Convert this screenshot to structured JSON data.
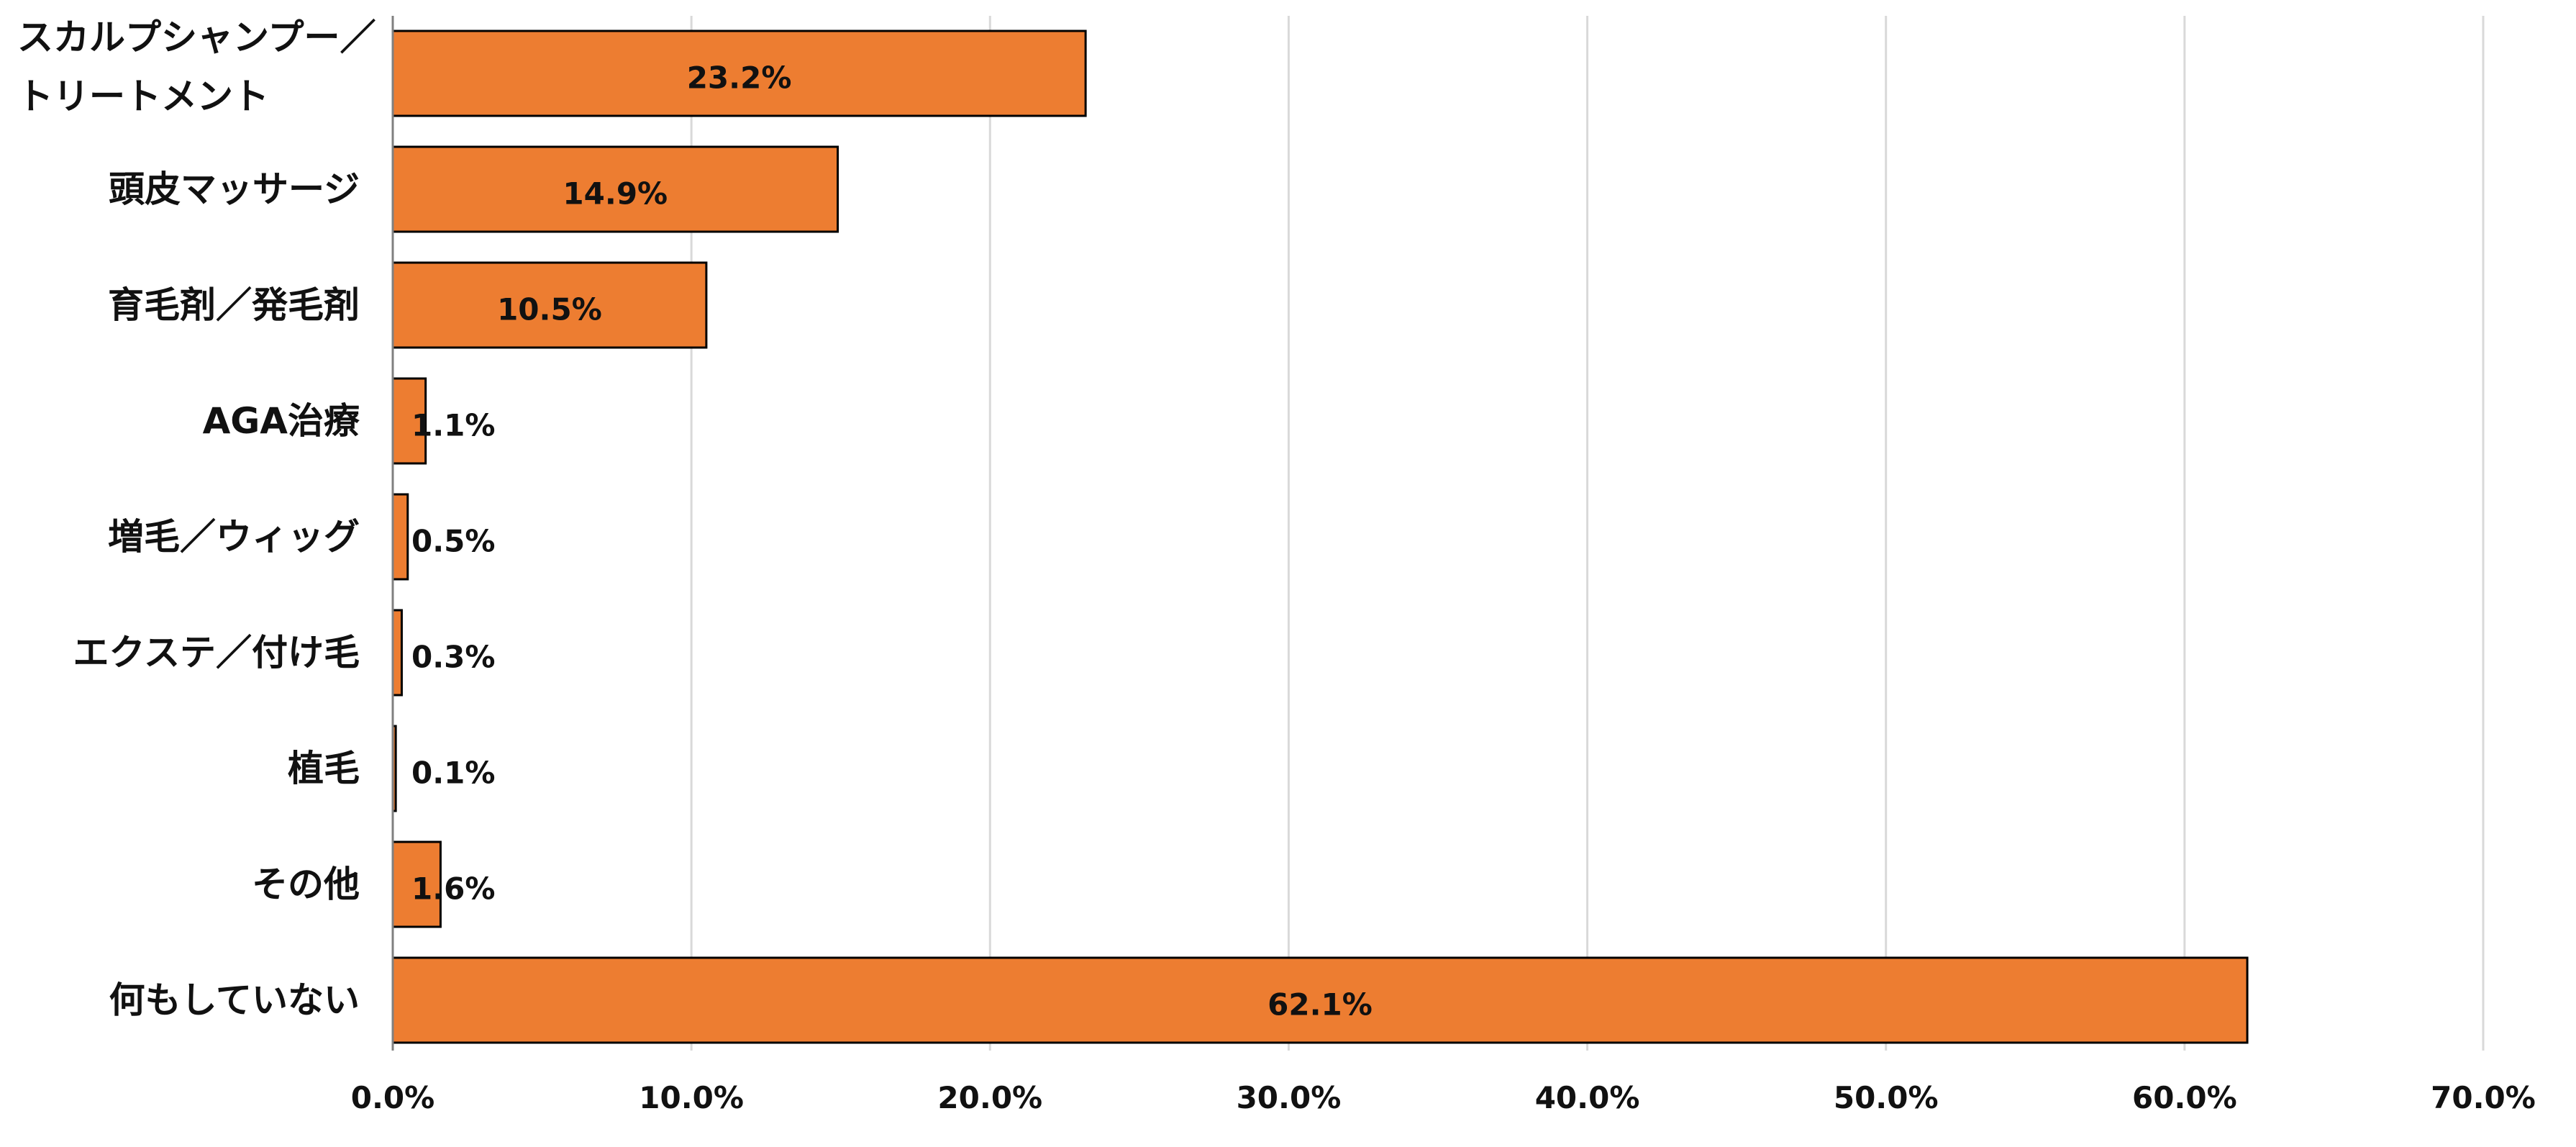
{
  "chart_data": {
    "type": "bar",
    "orientation": "horizontal",
    "categories": [
      [
        "スカルプシャンプー／",
        "トリートメント"
      ],
      [
        "頭皮マッサージ"
      ],
      [
        "育毛剤／発毛剤"
      ],
      [
        "AGA治療"
      ],
      [
        "増毛／ウィッグ"
      ],
      [
        "エクステ／付け毛"
      ],
      [
        "植毛"
      ],
      [
        "その他"
      ],
      [
        "何もしていない"
      ]
    ],
    "values": [
      23.2,
      14.9,
      10.5,
      1.1,
      0.5,
      0.3,
      0.1,
      1.6,
      62.1
    ],
    "data_labels": [
      "23.2%",
      "14.9%",
      "10.5%",
      "1.1%",
      "0.5%",
      "0.3%",
      "0.1%",
      "1.6%",
      "62.1%"
    ],
    "xlim": [
      0,
      70
    ],
    "x_ticks": [
      0,
      10,
      20,
      30,
      40,
      50,
      60,
      70
    ],
    "x_tick_labels": [
      "0.0%",
      "10.0%",
      "20.0%",
      "30.0%",
      "40.0%",
      "50.0%",
      "60.0%",
      "70.0%"
    ],
    "bar_color": "#ED7D31",
    "grid": true,
    "legend": "none",
    "title": "",
    "xlabel": "",
    "ylabel": ""
  }
}
